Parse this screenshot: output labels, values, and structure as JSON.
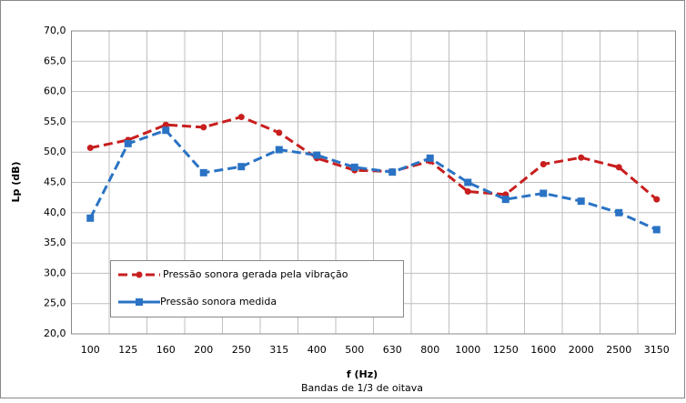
{
  "chart_data": {
    "type": "line",
    "y_label": "Lp (dB)",
    "x_label": "f (Hz)",
    "x_sublabel": "Bandas de 1/3 de oitava",
    "categories": [
      "100",
      "125",
      "160",
      "200",
      "250",
      "315",
      "400",
      "500",
      "630",
      "800",
      "1000",
      "1250",
      "1600",
      "2000",
      "2500",
      "3150"
    ],
    "series": [
      {
        "name": "Pressão sonora gerada pela vibração",
        "color": "#c81e1e",
        "marker": "circle",
        "values": [
          50.7,
          52,
          54.5,
          54.1,
          55.8,
          53.2,
          49,
          47,
          46.8,
          48.5,
          43.5,
          43,
          48,
          49.1,
          47.5,
          42.2
        ]
      },
      {
        "name": "Pressão sonora medida",
        "color": "#2a73c4",
        "marker": "square",
        "values": [
          39.1,
          51.4,
          53.6,
          46.6,
          47.6,
          50.4,
          49.5,
          47.5,
          46.7,
          49,
          45,
          42.2,
          43.2,
          41.9,
          40,
          37.2
        ]
      }
    ],
    "ylim": [
      20,
      70
    ],
    "yticks": [
      {
        "value": 20,
        "label": "20,0"
      },
      {
        "value": 25,
        "label": "25,0"
      },
      {
        "value": 30,
        "label": "30,0"
      },
      {
        "value": 35,
        "label": "35,0"
      },
      {
        "value": 40,
        "label": "40,0"
      },
      {
        "value": 45,
        "label": "45,0"
      },
      {
        "value": 50,
        "label": "50,0"
      },
      {
        "value": 55,
        "label": "55,0"
      },
      {
        "value": 60,
        "label": "60,0"
      },
      {
        "value": 65,
        "label": "65,0"
      },
      {
        "value": 70,
        "label": "70,0"
      }
    ],
    "grid": true
  }
}
